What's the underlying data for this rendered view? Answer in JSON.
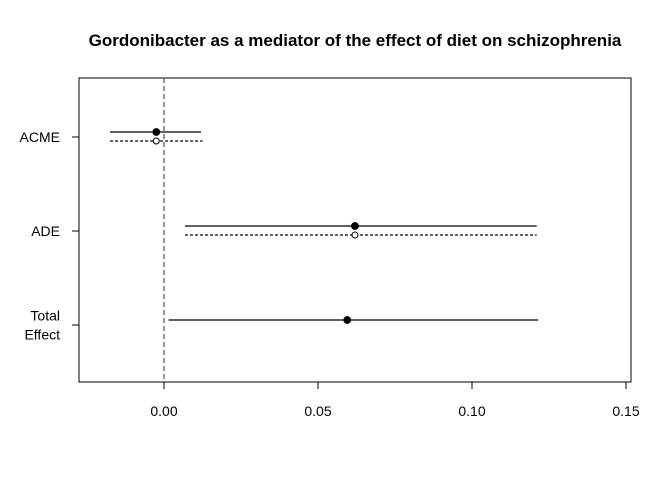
{
  "chart_data": {
    "type": "forest",
    "title": "Gordonibacter as a mediator of the effect of diet on schizophrenia",
    "xlabel": "",
    "ylabel": "",
    "xlim": [
      -0.028,
      0.15
    ],
    "x_ticks": [
      0.0,
      0.05,
      0.1,
      0.15
    ],
    "x_tick_labels": [
      "0.00",
      "0.05",
      "0.10",
      "0.15"
    ],
    "reference_line": 0,
    "categories": [
      {
        "label_lines": [
          "ACME"
        ]
      },
      {
        "label_lines": [
          "ADE"
        ]
      },
      {
        "label_lines": [
          "Total",
          "Effect"
        ]
      }
    ],
    "series": [
      {
        "style": "solid",
        "marker": "filled",
        "points": [
          {
            "category": 0,
            "estimate": -0.0025,
            "lower": -0.0175,
            "upper": 0.012
          },
          {
            "category": 1,
            "estimate": 0.062,
            "lower": 0.0068,
            "upper": 0.121
          },
          {
            "category": 2,
            "estimate": 0.0595,
            "lower": 0.0015,
            "upper": 0.1215
          }
        ]
      },
      {
        "style": "dotted",
        "marker": "open",
        "points": [
          {
            "category": 0,
            "estimate": -0.0025,
            "lower": -0.0175,
            "upper": 0.0125
          },
          {
            "category": 1,
            "estimate": 0.062,
            "lower": 0.0068,
            "upper": 0.121
          }
        ]
      }
    ],
    "grid": false,
    "legend": "none"
  }
}
